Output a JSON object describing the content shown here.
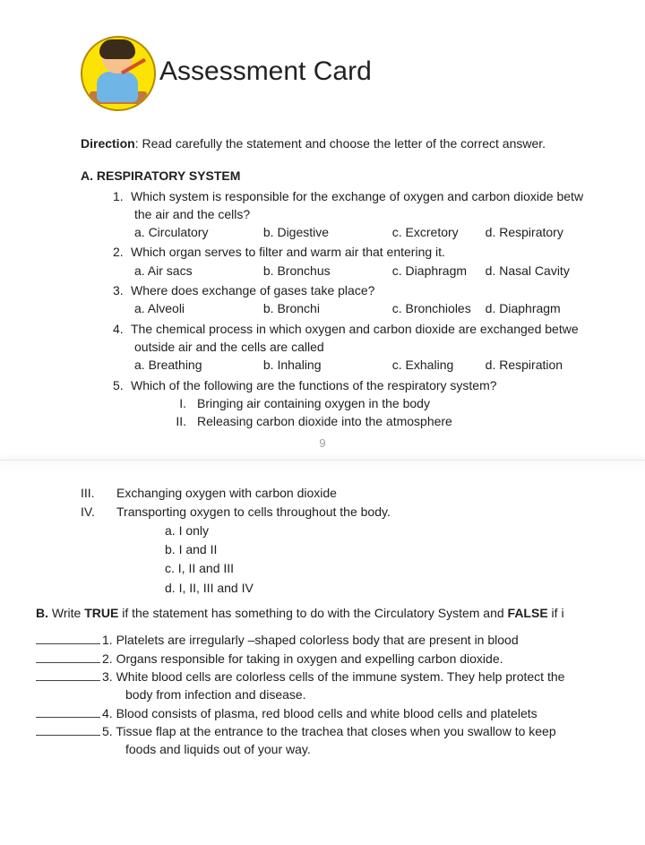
{
  "title": "Assessment Card",
  "direction_label": "Direction",
  "direction_text": ": Read carefully the statement and choose the letter of the correct answer.",
  "sectionA": {
    "heading": "A. RESPIRATORY SYSTEM",
    "q1": {
      "num": "1.",
      "line1": "Which system is responsible for the exchange of oxygen and carbon dioxide betw",
      "line2": "the air and the cells?",
      "a": "a. Circulatory",
      "b": "b. Digestive",
      "c": "c. Excretory",
      "d": "d. Respiratory"
    },
    "q2": {
      "num": "2.",
      "line1": "Which organ serves to filter and warm air that entering it.",
      "a": "a. Air sacs",
      "b": "b. Bronchus",
      "c": "c. Diaphragm",
      "d": "d. Nasal Cavity"
    },
    "q3": {
      "num": "3.",
      "line1": "Where does exchange of gases take place?",
      "a": "a. Alveoli",
      "b": "b. Bronchi",
      "c": "c. Bronchioles",
      "d": "d. Diaphragm"
    },
    "q4": {
      "num": "4.",
      "line1": "The chemical process in which oxygen and carbon dioxide are exchanged betwe",
      "line2": "outside air and the cells are called",
      "a": "a. Breathing",
      "b": "b. Inhaling",
      "c": "c. Exhaling",
      "d": "d. Respiration"
    },
    "q5": {
      "num": "5.",
      "line1": "Which of the following are the functions of the respiratory system?",
      "rI_n": "I.",
      "rI_t": "Bringing air containing oxygen in the body",
      "rII_n": "II.",
      "rII_t": "Releasing carbon dioxide into the atmosphere",
      "rIII_n": "III.",
      "rIII_t": "Exchanging oxygen with carbon dioxide",
      "rIV_n": "IV.",
      "rIV_t": "Transporting oxygen to cells throughout the body.",
      "oa": "a.   I only",
      "ob": "b.   I and II",
      "oc": "c.   I, II and III",
      "od": "d.   I, II, III and IV"
    }
  },
  "pagenum": "9",
  "sectionB": {
    "heading_pre": "B.",
    "heading_mid": " Write ",
    "true": "TRUE",
    "mid2": " if the statement has something to do with the Circulatory System and ",
    "false": "FALSE",
    "tail": " if i",
    "t1": "1. Platelets are irregularly –shaped colorless body that are present in blood",
    "t2": "2. Organs responsible for taking in oxygen and expelling carbon dioxide.",
    "t3": "3. White blood cells are colorless cells of the immune system. They help protect the",
    "t3b": "body from infection and disease.",
    "t4": "4. Blood consists of plasma, red blood cells and white blood cells and platelets",
    "t5": "5. Tissue flap at the entrance to the trachea that closes when you swallow to keep",
    "t5b": "foods and liquids out of your way."
  }
}
